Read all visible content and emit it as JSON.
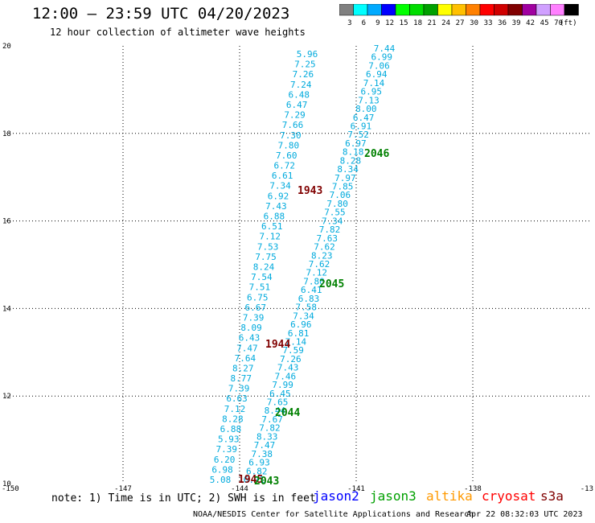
{
  "title": "12:00 – 23:59 UTC 04/20/2023",
  "subtitle": "12 hour collection of altimeter wave heights",
  "colorbar": {
    "colors": [
      "#808080",
      "#00ffff",
      "#00aaff",
      "#0000ff",
      "#00ff00",
      "#00dd00",
      "#00a000",
      "#ffff00",
      "#ffc000",
      "#ff8000",
      "#ff0000",
      "#d00000",
      "#800000",
      "#a000a0",
      "#d0a0ff",
      "#ff80ff",
      "#000000"
    ],
    "labels": [
      "3",
      "6",
      "9",
      "12",
      "15",
      "18",
      "21",
      "24",
      "27",
      "30",
      "33",
      "36",
      "39",
      "42",
      "45",
      "70",
      "(ft)"
    ]
  },
  "axes": {
    "x_ticks": [
      "-150",
      "-147",
      "-144",
      "-141",
      "-138",
      "-13"
    ],
    "y_ticks": [
      "20",
      "18",
      "16",
      "14",
      "12",
      "10"
    ],
    "x_range": [
      -150,
      -135
    ],
    "y_range": [
      10,
      20
    ]
  },
  "tracks": {
    "color": "#00aadd",
    "track1_lon": [
      -141.2,
      -143.8
    ],
    "track1_values": [
      "7.44",
      "6.99",
      "7.06",
      "6.94",
      "7.14",
      "6.95",
      "7.13",
      "8.00",
      "6.47",
      "6.91",
      "7.52",
      "6.97",
      "8.18",
      "8.28",
      "8.34",
      "7.97",
      "7.85",
      "7.06",
      "7.80",
      "7.55",
      "7.34",
      "7.82",
      "7.63",
      "7.62",
      "8.23",
      "7.62",
      "7.12",
      "7.80",
      "6.41",
      "6.83",
      "7.58",
      "7.34",
      "6.96",
      "6.81",
      "7.14",
      "7.59",
      "7.26",
      "7.43",
      "7.46",
      "7.99",
      "6.45",
      "7.65",
      "8.44",
      "7.67",
      "7.82",
      "8.33",
      "7.47",
      "7.38",
      "6.93",
      "6.82",
      "6.71"
    ],
    "track2_values": [
      "5.96",
      "7.25",
      "7.26",
      "7.24",
      "6.48",
      "6.47",
      "7.29",
      "7.66",
      "7.30",
      "7.80",
      "7.60",
      "6.72",
      "6.61",
      "7.34",
      "6.92",
      "7.43",
      "6.88",
      "6.51",
      "7.12",
      "7.53",
      "7.75",
      "8.24",
      "7.54",
      "7.51",
      "6.75",
      "6.67",
      "7.39",
      "8.09",
      "6.43",
      "7.47",
      "7.64",
      "8.27",
      "8.77",
      "7.39",
      "6.63",
      "7.12",
      "8.28",
      "6.88",
      "5.93",
      "7.39",
      "6.20",
      "6.98",
      "5.08"
    ]
  },
  "time_labels": [
    {
      "text": "2046",
      "color": "#008000"
    },
    {
      "text": "1943",
      "color": "#800000"
    },
    {
      "text": "2045",
      "color": "#008000"
    },
    {
      "text": "1944",
      "color": "#800000"
    },
    {
      "text": "2044",
      "color": "#008000"
    },
    {
      "text": "1945",
      "color": "#800000"
    },
    {
      "text": "2043",
      "color": "#008000"
    }
  ],
  "note": "note: 1) Time is in UTC; 2) SWH is in feet",
  "satellites": [
    {
      "name": "jason2",
      "color": "#0000ff"
    },
    {
      "name": "jason3",
      "color": "#00a000"
    },
    {
      "name": "altika",
      "color": "#ff9900"
    },
    {
      "name": "cryosat",
      "color": "#ff0000"
    },
    {
      "name": "s3a",
      "color": "#800000"
    }
  ],
  "credit": "NOAA/NESDIS Center for Satellite Applications and Research",
  "timestamp": "Apr 22 08:32:03 UTC 2023"
}
